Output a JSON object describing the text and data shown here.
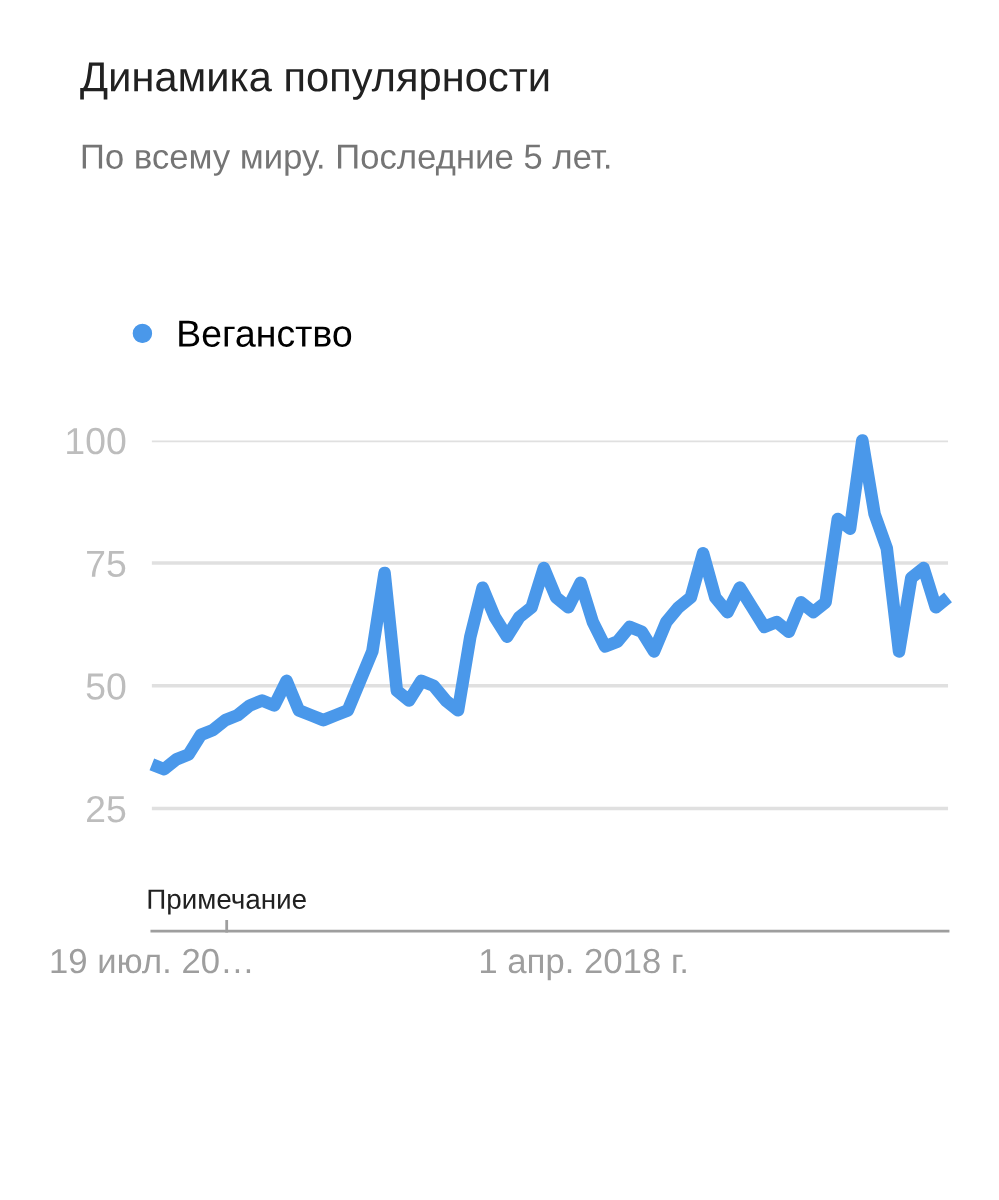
{
  "chart_data": {
    "type": "line",
    "title": "Динамика популярности",
    "subtitle": "По всему миру. Последние 5 лет.",
    "x": [
      "2015-07-19",
      "2015-08-16",
      "2015-09-13",
      "2015-10-11",
      "2015-11-08",
      "2015-12-06",
      "2016-01-03",
      "2016-01-31",
      "2016-02-28",
      "2016-03-27",
      "2016-04-24",
      "2016-05-22",
      "2016-06-19",
      "2016-07-17",
      "2016-08-14",
      "2016-09-11",
      "2016-10-09",
      "2016-11-06",
      "2016-12-04",
      "2017-01-01",
      "2017-01-29",
      "2017-02-26",
      "2017-03-26",
      "2017-04-23",
      "2017-05-21",
      "2017-06-18",
      "2017-07-16",
      "2017-08-13",
      "2017-09-10",
      "2017-10-08",
      "2017-11-05",
      "2017-12-03",
      "2017-12-31",
      "2018-01-28",
      "2018-02-25",
      "2018-03-25",
      "2018-04-22",
      "2018-05-20",
      "2018-06-17",
      "2018-07-15",
      "2018-08-12",
      "2018-09-09",
      "2018-10-07",
      "2018-11-04",
      "2018-12-02",
      "2018-12-30",
      "2019-01-27",
      "2019-02-24",
      "2019-03-24",
      "2019-04-21",
      "2019-05-19",
      "2019-06-16",
      "2019-07-14",
      "2019-08-11",
      "2019-09-08",
      "2019-10-06",
      "2019-11-03",
      "2019-12-01",
      "2019-12-29",
      "2020-01-26",
      "2020-02-23",
      "2020-03-22",
      "2020-04-19",
      "2020-05-17",
      "2020-06-14",
      "2020-07-12"
    ],
    "series": [
      {
        "name": "Веганство",
        "color": "#4a98ea",
        "values": [
          34,
          33,
          35,
          36,
          40,
          41,
          43,
          44,
          46,
          47,
          46,
          51,
          45,
          44,
          43,
          44,
          45,
          51,
          57,
          73,
          49,
          47,
          51,
          50,
          47,
          45,
          60,
          70,
          64,
          60,
          64,
          66,
          74,
          68,
          66,
          71,
          63,
          58,
          59,
          62,
          61,
          57,
          63,
          66,
          68,
          77,
          68,
          65,
          70,
          66,
          62,
          63,
          61,
          67,
          65,
          67,
          84,
          82,
          100,
          85,
          78,
          57,
          72,
          74,
          66,
          68
        ]
      }
    ],
    "xlim": [
      "2015-07-19",
      "2020-07-12"
    ],
    "xticks": [
      {
        "value": "2015-07-19",
        "label": "19 июл. 20…"
      },
      {
        "value": "2018-04-01",
        "label": "1 апр. 2018 г."
      }
    ],
    "ylim": [
      0,
      100
    ],
    "yticks": [
      25,
      50,
      75,
      100
    ],
    "grid": "y",
    "legend": "top left",
    "marker": "none",
    "line_style": "solid",
    "annotations": [
      "Примечание"
    ]
  }
}
